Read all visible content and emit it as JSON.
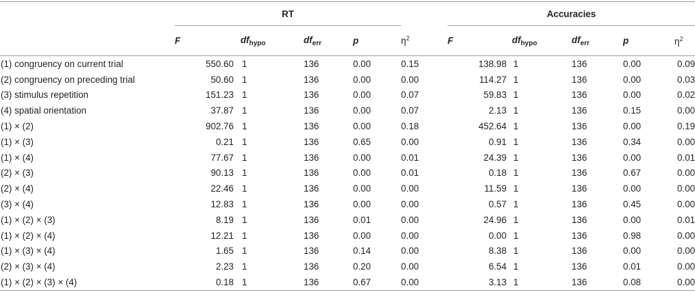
{
  "groups": {
    "rt": "RT",
    "acc": "Accuracies"
  },
  "columns": {
    "F": "F",
    "df": "df",
    "hypo": "hypo",
    "err": "err",
    "p": "p",
    "eta": "η",
    "eta_sup": "2"
  },
  "rows": [
    {
      "label": "(1) congruency on current trial",
      "rt": [
        "550.60",
        "1",
        "136",
        "0.00",
        "0.15"
      ],
      "acc": [
        "138.98",
        "1",
        "136",
        "0.00",
        "0.09"
      ]
    },
    {
      "label": "(2) congruency on preceding trial",
      "rt": [
        "50.60",
        "1",
        "136",
        "0.00",
        "0.00"
      ],
      "acc": [
        "114.27",
        "1",
        "136",
        "0.00",
        "0.03"
      ]
    },
    {
      "label": "(3) stimulus repetition",
      "rt": [
        "151.23",
        "1",
        "136",
        "0.00",
        "0.07"
      ],
      "acc": [
        "59.83",
        "1",
        "136",
        "0.00",
        "0.02"
      ]
    },
    {
      "label": "(4) spatial orientation",
      "rt": [
        "37.87",
        "1",
        "136",
        "0.00",
        "0.07"
      ],
      "acc": [
        "2.13",
        "1",
        "136",
        "0.15",
        "0.00"
      ]
    },
    {
      "label": "(1) × (2)",
      "rt": [
        "902.76",
        "1",
        "136",
        "0.00",
        "0.18"
      ],
      "acc": [
        "452.64",
        "1",
        "136",
        "0.00",
        "0.19"
      ]
    },
    {
      "label": "(1) × (3)",
      "rt": [
        "0.21",
        "1",
        "136",
        "0.65",
        "0.00"
      ],
      "acc": [
        "0.91",
        "1",
        "136",
        "0.34",
        "0.00"
      ]
    },
    {
      "label": "(1) × (4)",
      "rt": [
        "77.67",
        "1",
        "136",
        "0.00",
        "0.01"
      ],
      "acc": [
        "24.39",
        "1",
        "136",
        "0.00",
        "0.01"
      ]
    },
    {
      "label": "(2) × (3)",
      "rt": [
        "90.13",
        "1",
        "136",
        "0.00",
        "0.01"
      ],
      "acc": [
        "0.18",
        "1",
        "136",
        "0.67",
        "0.00"
      ]
    },
    {
      "label": "(2) × (4)",
      "rt": [
        "22.46",
        "1",
        "136",
        "0.00",
        "0.00"
      ],
      "acc": [
        "11.59",
        "1",
        "136",
        "0.00",
        "0.00"
      ]
    },
    {
      "label": "(3) × (4)",
      "rt": [
        "12.83",
        "1",
        "136",
        "0.00",
        "0.00"
      ],
      "acc": [
        "0.57",
        "1",
        "136",
        "0.45",
        "0.00"
      ]
    },
    {
      "label": "(1) × (2) × (3)",
      "rt": [
        "8.19",
        "1",
        "136",
        "0.01",
        "0.00"
      ],
      "acc": [
        "24.96",
        "1",
        "136",
        "0.00",
        "0.01"
      ]
    },
    {
      "label": "(1) × (2) × (4)",
      "rt": [
        "12.21",
        "1",
        "136",
        "0.00",
        "0.00"
      ],
      "acc": [
        "0.00",
        "1",
        "136",
        "0.98",
        "0.00"
      ]
    },
    {
      "label": "(1) × (3) × (4)",
      "rt": [
        "1.65",
        "1",
        "136",
        "0.14",
        "0.00"
      ],
      "acc": [
        "8.38",
        "1",
        "136",
        "0.00",
        "0.00"
      ]
    },
    {
      "label": "(2) × (3) × (4)",
      "rt": [
        "2.23",
        "1",
        "136",
        "0.20",
        "0.00"
      ],
      "acc": [
        "6.54",
        "1",
        "136",
        "0.01",
        "0.00"
      ]
    },
    {
      "label": "(1) × (2) × (3) × (4)",
      "rt": [
        "0.18",
        "1",
        "136",
        "0.67",
        "0.00"
      ],
      "acc": [
        "3.13",
        "1",
        "136",
        "0.08",
        "0.00"
      ]
    }
  ]
}
